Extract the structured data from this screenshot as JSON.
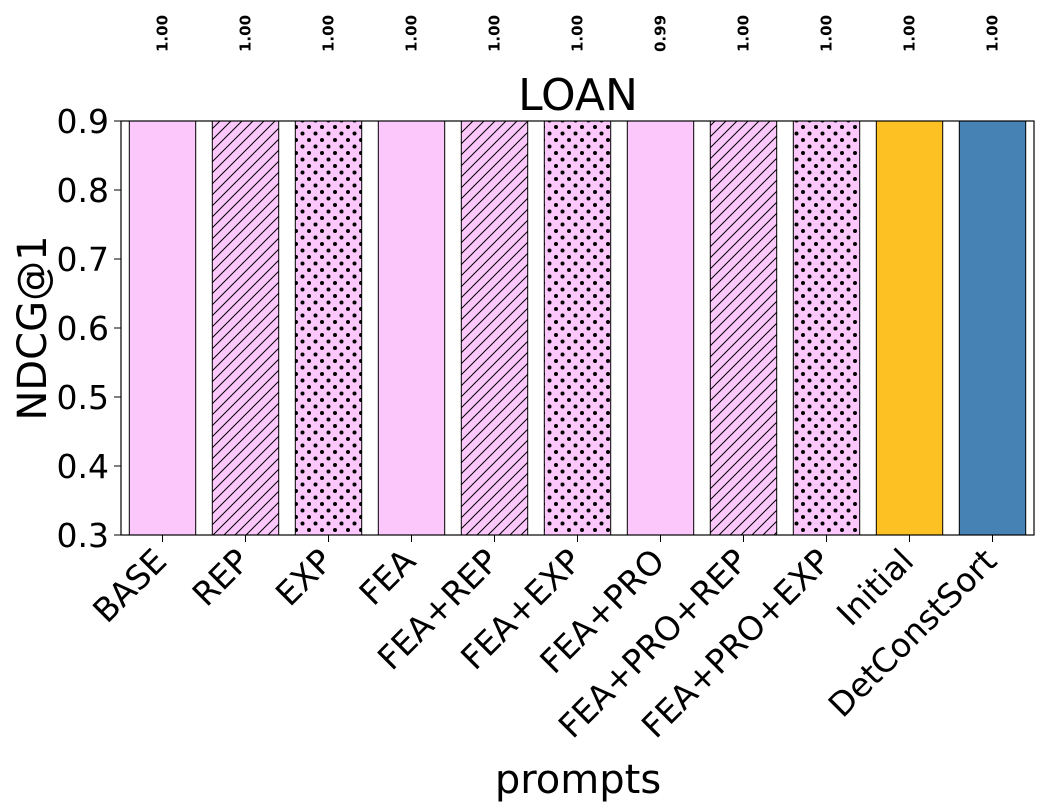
{
  "chart_data": {
    "type": "bar",
    "title": "LOAN",
    "xlabel": "prompts",
    "ylabel": "NDCG@1",
    "ylim": [
      0.3,
      0.9
    ],
    "yticks": [
      "0.3",
      "0.4",
      "0.5",
      "0.6",
      "0.7",
      "0.8",
      "0.9"
    ],
    "categories": [
      "BASE",
      "REP",
      "EXP",
      "FEA",
      "FEA+REP",
      "FEA+EXP",
      "FEA+PRO",
      "FEA+PRO+REP",
      "FEA+PRO+EXP",
      "Initial",
      "DetConstSort"
    ],
    "values": [
      1.0,
      1.0,
      1.0,
      1.0,
      1.0,
      1.0,
      0.99,
      1.0,
      1.0,
      1.0,
      1.0
    ],
    "value_labels": [
      "1.00",
      "1.00",
      "1.00",
      "1.00",
      "1.00",
      "1.00",
      "0.99",
      "1.00",
      "1.00",
      "1.00",
      "1.00"
    ],
    "bar_fills": [
      "#fcc8fc",
      "#fcc8fc",
      "#fcc8fc",
      "#fcc8fc",
      "#fcc8fc",
      "#fcc8fc",
      "#fcc8fc",
      "#fcc8fc",
      "#fcc8fc",
      "#fdc124",
      "#4682b4"
    ],
    "bar_patterns": [
      "none",
      "diagonal",
      "dots",
      "none",
      "diagonal",
      "dots",
      "none",
      "diagonal",
      "dots",
      "none",
      "none"
    ],
    "grid": false,
    "legend": "none"
  }
}
